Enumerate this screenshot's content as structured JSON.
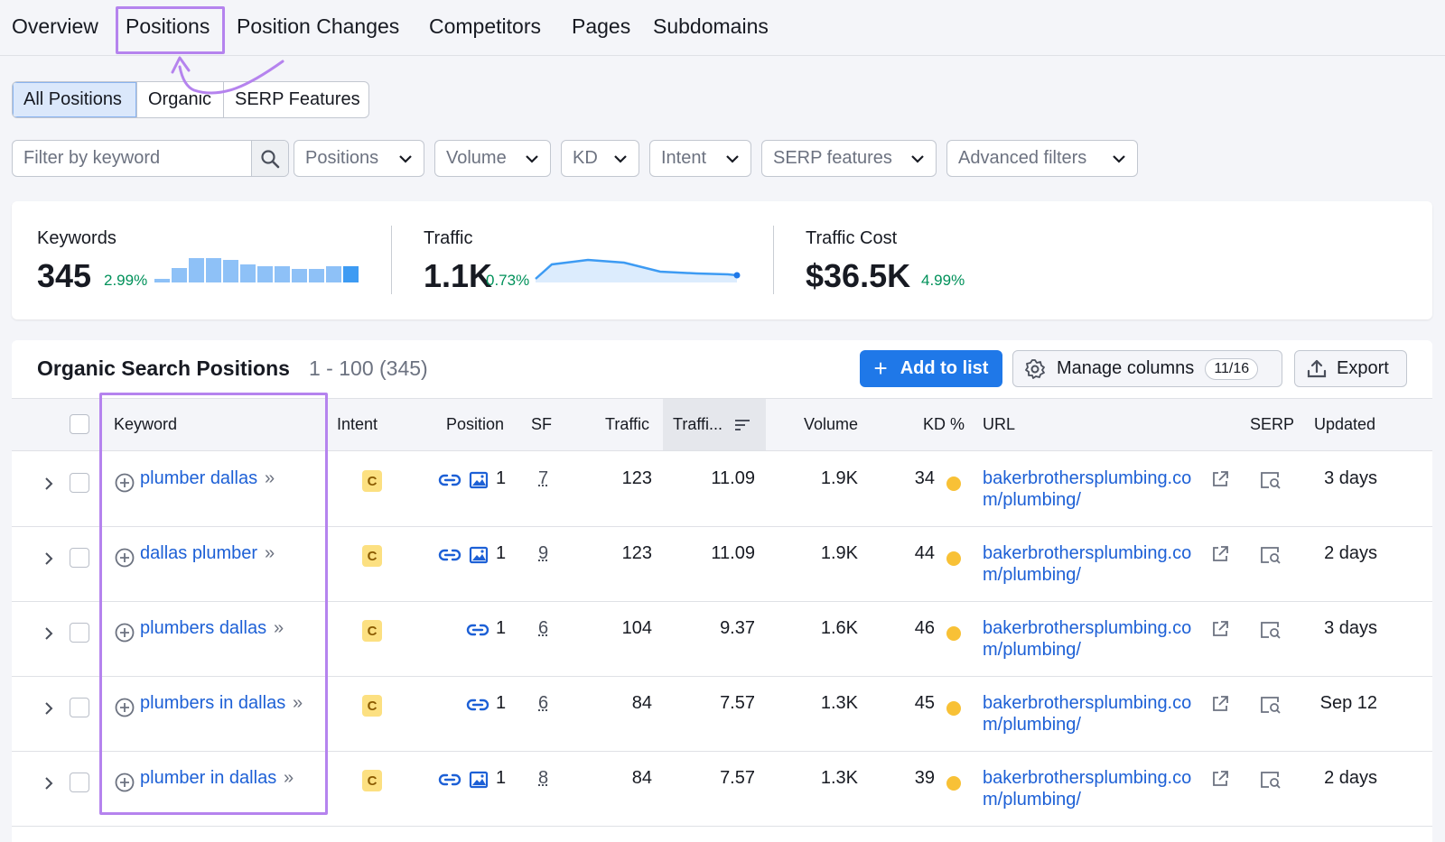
{
  "nav": {
    "tabs": [
      {
        "label": "Overview",
        "active": false
      },
      {
        "label": "Positions",
        "active": true
      },
      {
        "label": "Position Changes",
        "active": false
      },
      {
        "label": "Competitors",
        "active": false
      },
      {
        "label": "Pages",
        "active": false
      },
      {
        "label": "Subdomains",
        "active": false
      }
    ]
  },
  "subtabs": [
    "All Positions",
    "Organic",
    "SERP Features"
  ],
  "filters": {
    "search_placeholder": "Filter by keyword",
    "dropdowns": [
      "Positions",
      "Volume",
      "KD",
      "Intent",
      "SERP features",
      "Advanced filters"
    ]
  },
  "summary": {
    "keywords": {
      "label": "Keywords",
      "value": "345",
      "change": "2.99%"
    },
    "traffic": {
      "label": "Traffic",
      "value": "1.1K",
      "change": "0.73%"
    },
    "traffic_cost": {
      "label": "Traffic Cost",
      "value": "$36.5K",
      "change": "4.99%"
    }
  },
  "table": {
    "title": "Organic Search Positions",
    "range": "1 - 100 (345)",
    "add_label": "Add to list",
    "manage_label": "Manage columns",
    "manage_count": "11/16",
    "export_label": "Export",
    "headers": {
      "keyword": "Keyword",
      "intent": "Intent",
      "position": "Position",
      "sf": "SF",
      "traffic": "Traffic",
      "traffic_pct": "Traffi...",
      "volume": "Volume",
      "kd": "KD %",
      "url": "URL",
      "serp": "SERP",
      "updated": "Updated"
    },
    "rows": [
      {
        "keyword": "plumber dallas",
        "intent": "C",
        "position": "1",
        "sf": "7",
        "traffic": "123",
        "traffic_pct": "11.09",
        "volume": "1.9K",
        "kd": "34",
        "url": "bakerbrothersplumbing.com/plumbing/",
        "updated": "3 days",
        "image_feature": true
      },
      {
        "keyword": "dallas plumber",
        "intent": "C",
        "position": "1",
        "sf": "9",
        "traffic": "123",
        "traffic_pct": "11.09",
        "volume": "1.9K",
        "kd": "44",
        "url": "bakerbrothersplumbing.com/plumbing/",
        "updated": "2 days",
        "image_feature": true
      },
      {
        "keyword": "plumbers dallas",
        "intent": "C",
        "position": "1",
        "sf": "6",
        "traffic": "104",
        "traffic_pct": "9.37",
        "volume": "1.6K",
        "kd": "46",
        "url": "bakerbrothersplumbing.com/plumbing/",
        "updated": "3 days",
        "image_feature": false
      },
      {
        "keyword": "plumbers in dallas",
        "intent": "C",
        "position": "1",
        "sf": "6",
        "traffic": "84",
        "traffic_pct": "7.57",
        "volume": "1.3K",
        "kd": "45",
        "url": "bakerbrothersplumbing.com/plumbing/",
        "updated": "Sep 12",
        "image_feature": false
      },
      {
        "keyword": "plumber in dallas",
        "intent": "C",
        "position": "1",
        "sf": "8",
        "traffic": "84",
        "traffic_pct": "7.57",
        "volume": "1.3K",
        "kd": "39",
        "url": "bakerbrothersplumbing.com/plumbing/",
        "updated": "2 days",
        "image_feature": true
      }
    ]
  },
  "colors": {
    "accent": "#1f78e8",
    "highlight": "#b583ee",
    "positive": "#00915a",
    "intent_commercial": "#fce081",
    "kd_medium": "#f8c136",
    "link": "#1d60d6"
  }
}
